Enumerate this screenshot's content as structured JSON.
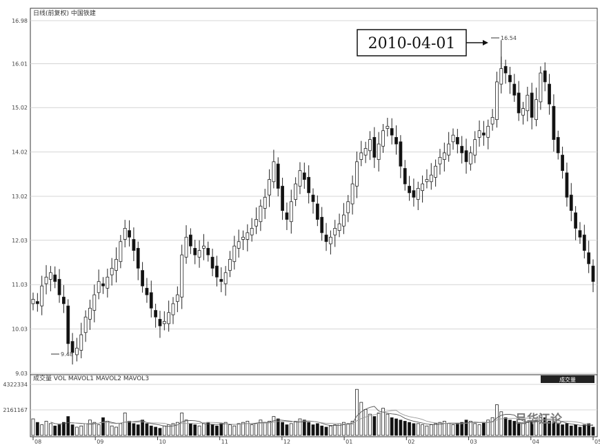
{
  "header": {
    "price_title": "日线(前复权) 中国铁建",
    "volume_title": "成交量 VOL MAVOL1 MAVOL2 MAVOL3",
    "volume_badge": "成交量"
  },
  "annotation": {
    "date_label": "2010-04-01",
    "high_label": "16.54"
  },
  "low_label": "9.48",
  "watermark": "吕华江论",
  "price_axis": [
    "16.98",
    "16.01",
    "15.02",
    "14.02",
    "13.02",
    "12.03",
    "11.03",
    "10.03",
    "9.03"
  ],
  "volume_axis": [
    "4322334",
    "2161167"
  ],
  "date_axis": [
    "08",
    "09",
    "10",
    "11",
    "12",
    "01",
    "02",
    "03",
    "04",
    "05"
  ],
  "colors": {
    "up": "#ffffff",
    "down": "#111111",
    "grid": "#d4d4d4",
    "axis": "#333333"
  },
  "chart_data": [
    {
      "type": "candlestick",
      "title": "",
      "ylim": [
        9.03,
        16.98
      ],
      "grid": true,
      "months": [
        "08",
        "09",
        "10",
        "11",
        "12",
        "01",
        "02",
        "03",
        "04",
        "05"
      ],
      "close": [
        10.7,
        10.6,
        11.0,
        11.2,
        11.3,
        11.1,
        10.8,
        10.6,
        9.7,
        9.5,
        9.6,
        9.9,
        10.3,
        10.5,
        10.8,
        11.1,
        11.0,
        11.2,
        11.4,
        11.6,
        12.0,
        12.3,
        12.1,
        11.8,
        11.4,
        11.0,
        10.8,
        10.5,
        10.3,
        10.1,
        10.2,
        10.4,
        10.6,
        10.8,
        11.7,
        12.1,
        11.9,
        11.7,
        11.8,
        11.9,
        11.7,
        11.4,
        11.2,
        11.1,
        11.3,
        11.6,
        11.9,
        12.0,
        12.1,
        12.2,
        12.3,
        12.5,
        12.8,
        13.0,
        13.4,
        13.8,
        13.2,
        12.7,
        12.5,
        12.9,
        13.3,
        13.6,
        13.4,
        13.1,
        12.9,
        12.5,
        12.2,
        12.0,
        12.1,
        12.3,
        12.4,
        12.6,
        12.9,
        13.3,
        13.8,
        14.0,
        14.1,
        14.3,
        13.9,
        14.2,
        14.5,
        14.6,
        14.4,
        14.2,
        13.7,
        13.3,
        13.1,
        13.0,
        13.2,
        13.3,
        13.4,
        13.5,
        13.7,
        13.9,
        14.0,
        14.2,
        14.4,
        14.2,
        14.0,
        13.8,
        14.0,
        14.3,
        14.5,
        14.4,
        14.6,
        14.8,
        15.6,
        15.9,
        15.8,
        15.6,
        15.3,
        14.9,
        15.0,
        15.3,
        14.8,
        15.2,
        15.8,
        15.6,
        15.1,
        14.3,
        14.0,
        13.6,
        13.0,
        12.7,
        12.3,
        12.1,
        11.8,
        11.5,
        11.1
      ],
      "high": 16.54,
      "low": 9.48,
      "high_date": "2010-04-01"
    },
    {
      "type": "bar",
      "title": "",
      "ylim": [
        0,
        4322334
      ],
      "values": [
        1.4,
        1.1,
        0.9,
        1.2,
        1.0,
        0.8,
        0.9,
        1.1,
        1.6,
        0.9,
        0.7,
        0.8,
        1.0,
        1.3,
        1.1,
        0.9,
        1.5,
        1.2,
        0.8,
        0.7,
        1.0,
        1.9,
        1.2,
        1.0,
        0.9,
        1.3,
        1.0,
        0.8,
        0.7,
        0.6,
        0.8,
        0.9,
        1.0,
        1.1,
        1.9,
        1.3,
        1.0,
        0.9,
        0.8,
        1.0,
        1.1,
        0.9,
        0.8,
        1.0,
        1.1,
        0.9,
        0.8,
        1.0,
        1.1,
        1.2,
        0.9,
        1.0,
        1.3,
        1.1,
        1.2,
        1.6,
        1.4,
        1.1,
        0.9,
        1.0,
        1.2,
        1.4,
        1.3,
        1.1,
        0.9,
        1.0,
        0.8,
        0.7,
        0.8,
        0.9,
        1.0,
        1.1,
        1.0,
        1.2,
        3.9,
        2.8,
        2.2,
        1.8,
        1.6,
        1.9,
        2.3,
        1.8,
        1.5,
        1.4,
        1.3,
        1.2,
        1.1,
        1.0,
        1.0,
        0.9,
        0.8,
        0.9,
        1.0,
        1.1,
        1.2,
        1.0,
        0.9,
        1.0,
        1.1,
        1.3,
        1.2,
        1.0,
        0.9,
        1.1,
        1.3,
        1.5,
        2.6,
        2.0,
        1.5,
        1.3,
        1.2,
        1.1,
        1.0,
        1.1,
        1.2,
        1.3,
        1.7,
        1.5,
        1.2,
        1.1,
        1.0,
        0.9,
        1.0,
        0.8,
        0.9,
        0.7,
        0.9,
        1.0,
        0.7
      ]
    }
  ]
}
